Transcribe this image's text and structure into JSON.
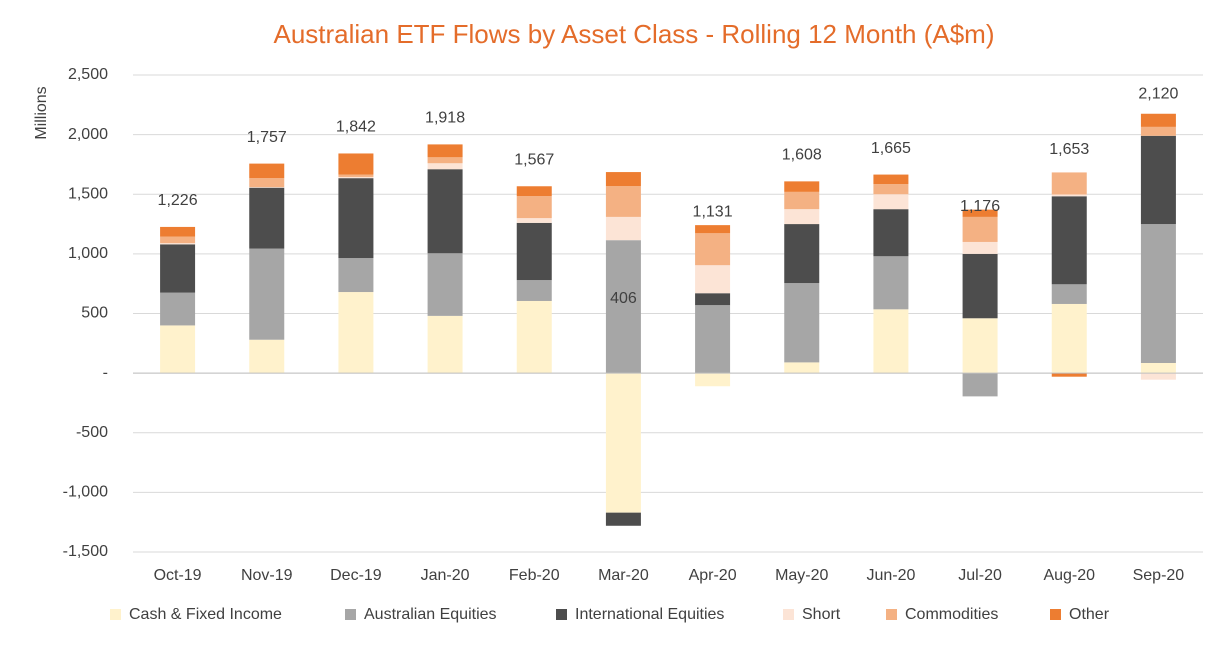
{
  "chart_data": {
    "type": "stacked_bar",
    "title": "Australian ETF Flows by Asset Class - Rolling 12 Month (A$m)",
    "y_label": "Millions",
    "categories": [
      "Oct-19",
      "Nov-19",
      "Dec-19",
      "Jan-20",
      "Feb-20",
      "Mar-20",
      "Apr-20",
      "May-20",
      "Jun-20",
      "Jul-20",
      "Aug-20",
      "Sep-20"
    ],
    "series": [
      {
        "name": "Cash & Fixed Income",
        "color": "#fff2cc",
        "values": [
          400,
          280,
          680,
          480,
          605,
          -1170,
          -110,
          90,
          535,
          460,
          580,
          85
        ]
      },
      {
        "name": "Australian Equities",
        "color": "#a6a6a6",
        "values": [
          275,
          765,
          285,
          525,
          175,
          1115,
          570,
          665,
          445,
          -195,
          165,
          1165
        ]
      },
      {
        "name": "International Equities",
        "color": "#4d4d4d",
        "values": [
          405,
          510,
          670,
          705,
          480,
          -110,
          100,
          495,
          395,
          540,
          738,
          740
        ]
      },
      {
        "name": "Short",
        "color": "#fce4d6",
        "values": [
          10,
          5,
          10,
          50,
          40,
          195,
          235,
          125,
          125,
          100,
          15,
          -55
        ]
      },
      {
        "name": "Commodities",
        "color": "#f4b183",
        "values": [
          55,
          75,
          20,
          50,
          185,
          258,
          268,
          145,
          85,
          210,
          185,
          75
        ]
      },
      {
        "name": "Other",
        "color": "#ed7d31",
        "values": [
          81,
          122,
          177,
          108,
          82,
          118,
          68,
          88,
          80,
          61,
          -30,
          110
        ]
      }
    ],
    "totals": [
      1226,
      1757,
      1842,
      1918,
      1567,
      406,
      1131,
      1608,
      1665,
      1176,
      1653,
      2120
    ],
    "total_labels": [
      "1,226",
      "1,757",
      "1,842",
      "1,918",
      "1,567",
      "406",
      "1,131",
      "1,608",
      "1,665",
      "1,176",
      "1,653",
      "2,120"
    ],
    "ylim": [
      -1500,
      2500
    ],
    "yticks": [
      {
        "value": -1500,
        "label": "-1,500"
      },
      {
        "value": -1000,
        "label": "-1,000"
      },
      -500,
      {
        "value": 0,
        "label": "-"
      },
      500,
      {
        "value": 1000,
        "label": "1,000"
      },
      {
        "value": 1500,
        "label": "1,500"
      },
      {
        "value": 2000,
        "label": "2,000"
      },
      {
        "value": 2500,
        "label": "2,500"
      }
    ],
    "grid": true
  }
}
